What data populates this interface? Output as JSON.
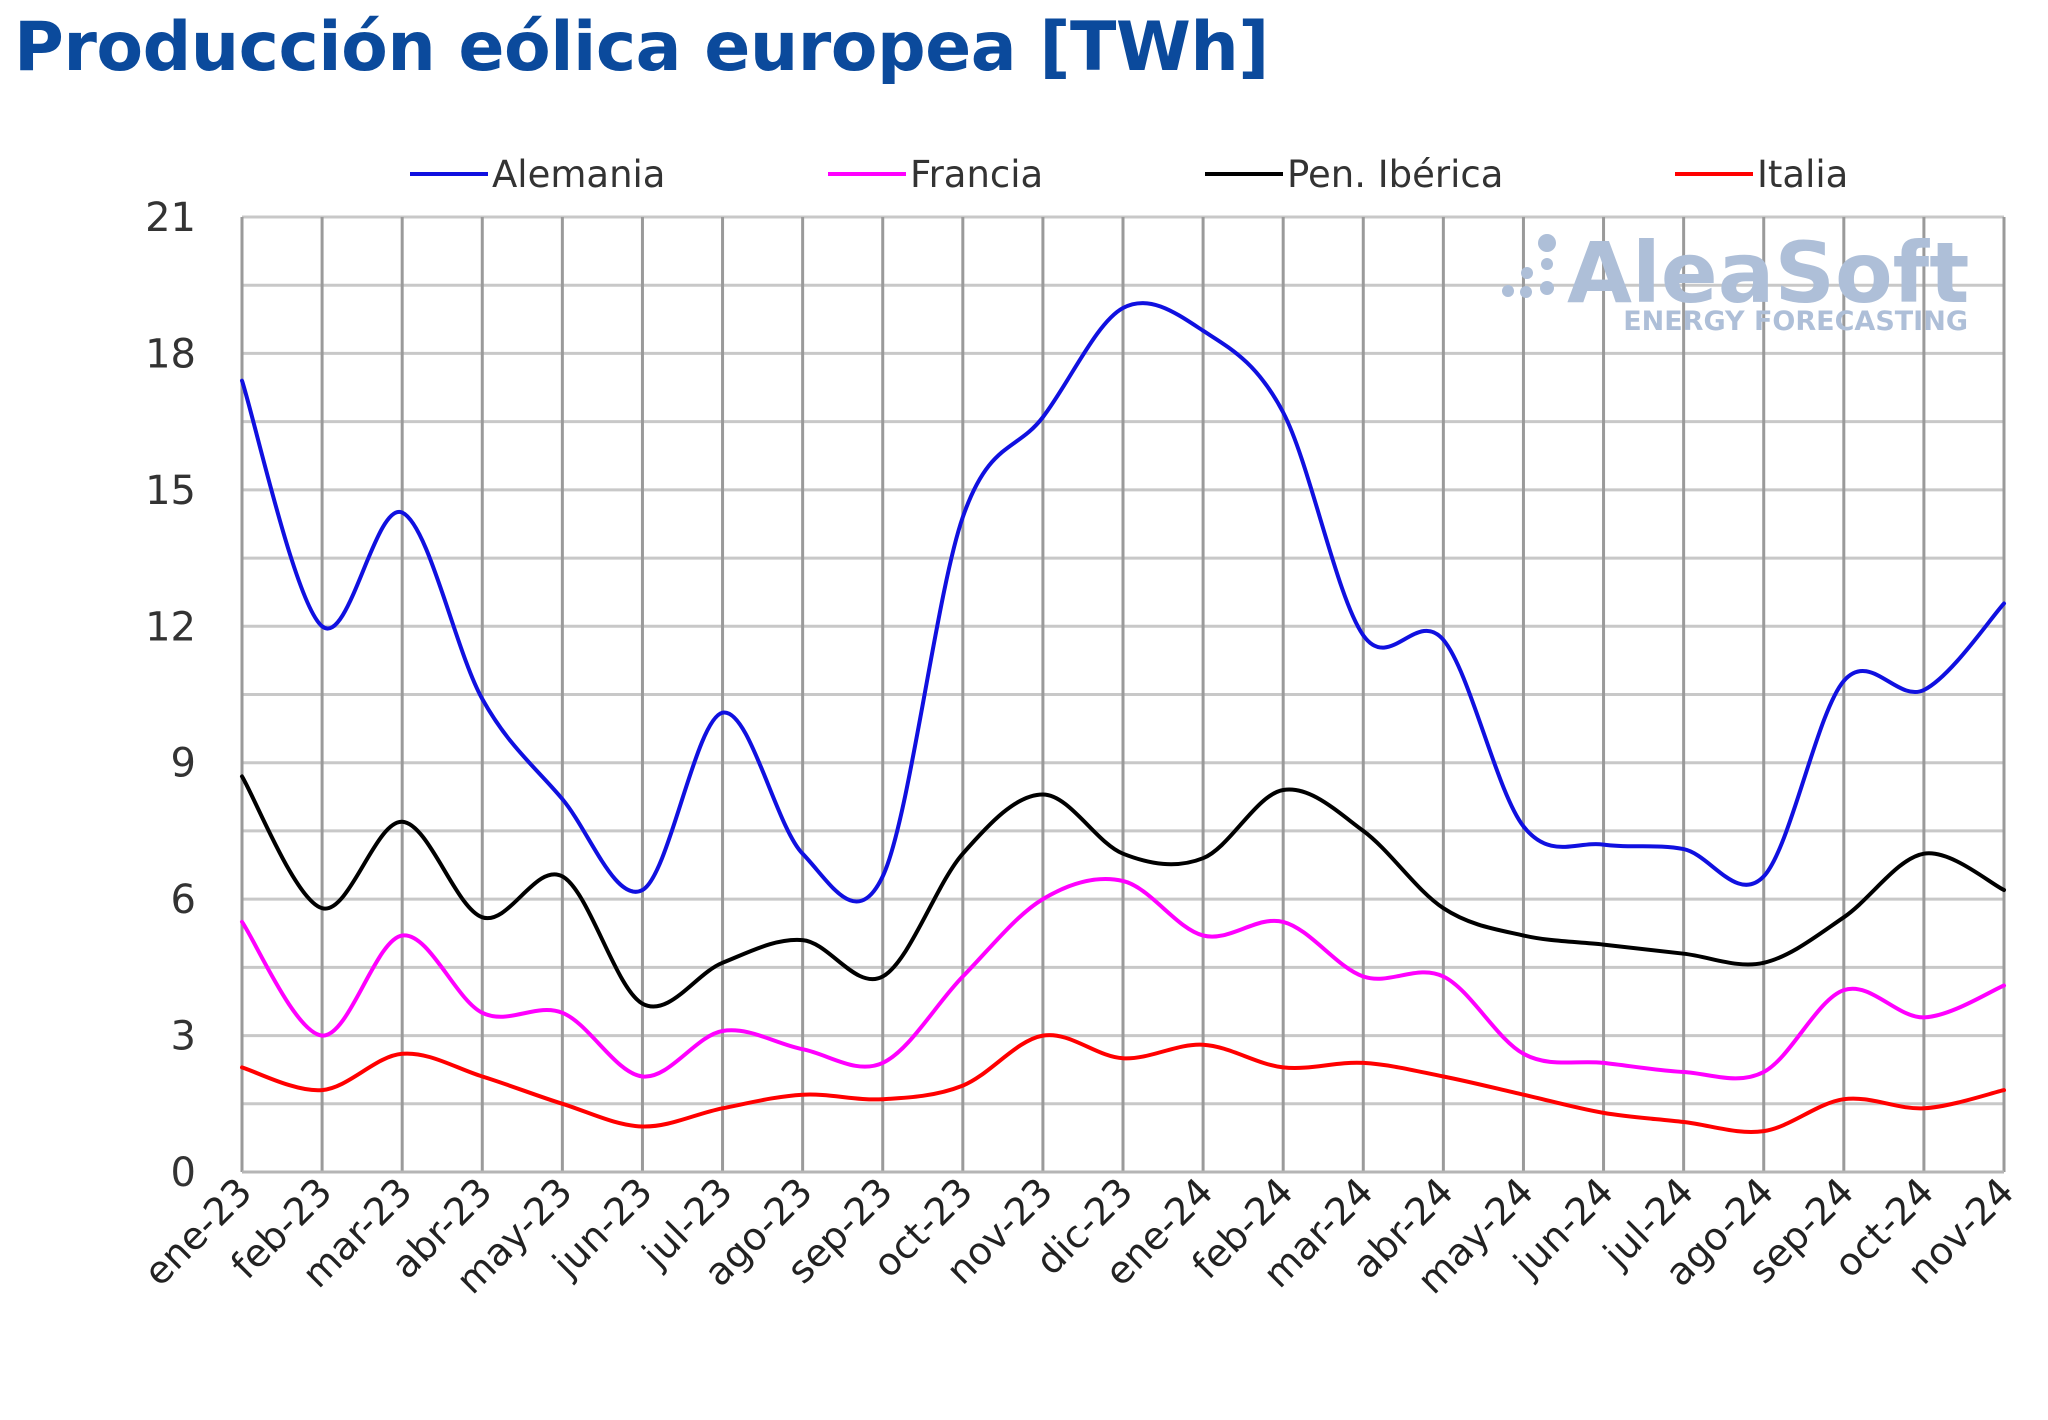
{
  "title": "Producción eólica europea [TWh]",
  "watermark": {
    "brand": "AleaSoft",
    "tagline": "ENERGY FORECASTING"
  },
  "chart_data": {
    "type": "line",
    "title": "Producción eólica europea [TWh]",
    "xlabel": "",
    "ylabel": "",
    "ylim": [
      0,
      21
    ],
    "yticks": [
      0,
      3,
      6,
      9,
      12,
      15,
      18,
      21
    ],
    "grid": true,
    "legend_position": "top",
    "categories": [
      "ene-23",
      "feb-23",
      "mar-23",
      "abr-23",
      "may-23",
      "jun-23",
      "jul-23",
      "ago-23",
      "sep-23",
      "oct-23",
      "nov-23",
      "dic-23",
      "ene-24",
      "feb-24",
      "mar-24",
      "abr-24",
      "may-24",
      "jun-24",
      "jul-24",
      "ago-24",
      "sep-24",
      "oct-24",
      "nov-24"
    ],
    "series": [
      {
        "name": "Alemania",
        "color": "#1010e0",
        "values": [
          17.4,
          12.0,
          14.5,
          10.4,
          8.2,
          6.2,
          10.1,
          7.0,
          6.5,
          14.4,
          16.6,
          19.0,
          18.5,
          16.7,
          11.8,
          11.7,
          7.6,
          7.2,
          7.1,
          6.5,
          10.8,
          10.6,
          12.5
        ]
      },
      {
        "name": "Francia",
        "color": "#ff00ff",
        "values": [
          5.5,
          3.0,
          5.2,
          3.5,
          3.5,
          2.1,
          3.1,
          2.7,
          2.4,
          4.3,
          6.0,
          6.4,
          5.2,
          5.5,
          4.3,
          4.3,
          2.6,
          2.4,
          2.2,
          2.2,
          4.0,
          3.4,
          4.1
        ]
      },
      {
        "name": "Pen. Ibérica",
        "color": "#000000",
        "values": [
          8.7,
          5.8,
          7.7,
          5.6,
          6.5,
          3.7,
          4.6,
          5.1,
          4.3,
          7.0,
          8.3,
          7.0,
          6.9,
          8.4,
          7.5,
          5.8,
          5.2,
          5.0,
          4.8,
          4.6,
          5.6,
          7.0,
          6.2
        ]
      },
      {
        "name": "Italia",
        "color": "#ff0000",
        "values": [
          2.3,
          1.8,
          2.6,
          2.1,
          1.5,
          1.0,
          1.4,
          1.7,
          1.6,
          1.9,
          3.0,
          2.5,
          2.8,
          2.3,
          2.4,
          2.1,
          1.7,
          1.3,
          1.1,
          0.9,
          1.6,
          1.4,
          1.8
        ]
      }
    ]
  }
}
